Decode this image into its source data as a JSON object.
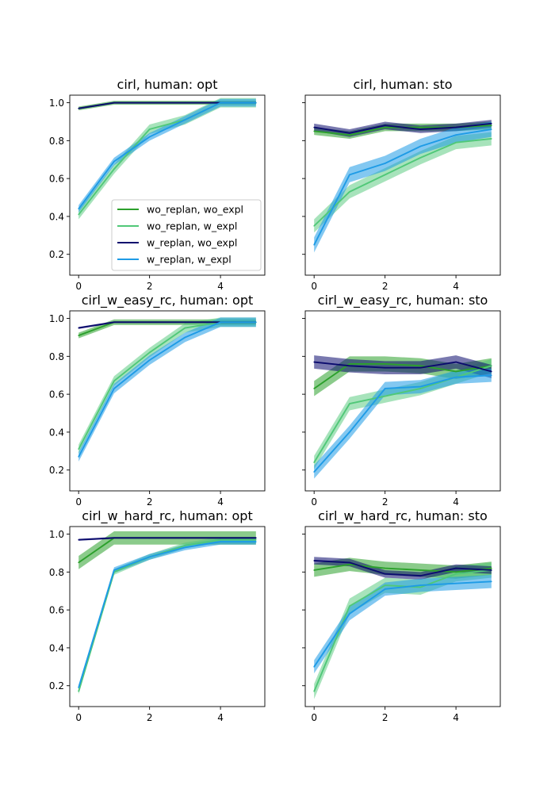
{
  "legend": {
    "entries": [
      {
        "label": "wo_replan, wo_expl",
        "color": "#2ca02c"
      },
      {
        "label": "wo_replan, w_expl",
        "color": "#50c878"
      },
      {
        "label": "w_replan, wo_expl",
        "color": "#0b0b6e"
      },
      {
        "label": "w_replan, w_expl",
        "color": "#1e9be6"
      }
    ]
  },
  "chart_data": [
    {
      "type": "line",
      "title": "cirl, human: opt",
      "x": [
        0,
        1,
        2,
        3,
        4,
        5
      ],
      "xticks": [
        0,
        2,
        4
      ],
      "yticks": [
        "0.2",
        "0.4",
        "0.6",
        "0.8",
        "1.0"
      ],
      "ylim": [
        0.09,
        1.04
      ],
      "xlim": [
        -0.25,
        5.25
      ],
      "legend_location": "lower right",
      "series": [
        {
          "name": "wo_replan, wo_expl",
          "values": [
            0.97,
            1.0,
            1.0,
            1.0,
            1.0,
            1.0
          ],
          "band": 0.01
        },
        {
          "name": "wo_replan, w_expl",
          "values": [
            0.41,
            0.65,
            0.86,
            0.91,
            1.0,
            1.0
          ],
          "band": 0.025
        },
        {
          "name": "w_replan, wo_expl",
          "values": [
            0.97,
            1.0,
            1.0,
            1.0,
            1.0,
            1.0
          ],
          "band": 0.005
        },
        {
          "name": "w_replan, w_expl",
          "values": [
            0.44,
            0.69,
            0.82,
            0.91,
            1.0,
            1.0
          ],
          "band": 0.02
        }
      ]
    },
    {
      "type": "line",
      "title": "cirl, human: sto",
      "x": [
        0,
        1,
        2,
        3,
        4,
        5
      ],
      "xticks": [
        0,
        2,
        4
      ],
      "yticks": [
        "0.2",
        "0.4",
        "0.6",
        "0.8",
        "1.0"
      ],
      "ylim": [
        0.09,
        1.04
      ],
      "xlim": [
        -0.25,
        5.25
      ],
      "series": [
        {
          "name": "wo_replan, wo_expl",
          "values": [
            0.85,
            0.83,
            0.87,
            0.87,
            0.87,
            0.88
          ],
          "band": 0.02
        },
        {
          "name": "wo_replan, w_expl",
          "values": [
            0.35,
            0.53,
            0.62,
            0.71,
            0.79,
            0.81
          ],
          "band": 0.035
        },
        {
          "name": "w_replan, wo_expl",
          "values": [
            0.87,
            0.84,
            0.88,
            0.86,
            0.87,
            0.89
          ],
          "band": 0.02
        },
        {
          "name": "w_replan, w_expl",
          "values": [
            0.25,
            0.62,
            0.68,
            0.77,
            0.83,
            0.86
          ],
          "band": 0.04
        }
      ]
    },
    {
      "type": "line",
      "title": "cirl_w_easy_rc, human: opt",
      "x": [
        0,
        1,
        2,
        3,
        4,
        5
      ],
      "xticks": [
        0,
        2,
        4
      ],
      "yticks": [
        "0.2",
        "0.4",
        "0.6",
        "0.8",
        "1.0"
      ],
      "ylim": [
        0.09,
        1.04
      ],
      "xlim": [
        -0.25,
        5.25
      ],
      "series": [
        {
          "name": "wo_replan, wo_expl",
          "values": [
            0.91,
            0.98,
            0.98,
            0.98,
            0.98,
            0.98
          ],
          "band": 0.015
        },
        {
          "name": "wo_replan, w_expl",
          "values": [
            0.31,
            0.67,
            0.82,
            0.95,
            0.98,
            0.98
          ],
          "band": 0.025
        },
        {
          "name": "w_replan, wo_expl",
          "values": [
            0.95,
            0.98,
            0.98,
            0.98,
            0.98,
            0.98
          ],
          "band": 0.005
        },
        {
          "name": "w_replan, w_expl",
          "values": [
            0.27,
            0.63,
            0.78,
            0.9,
            0.98,
            0.98
          ],
          "band": 0.025
        }
      ]
    },
    {
      "type": "line",
      "title": "cirl_w_easy_rc, human: sto",
      "x": [
        0,
        1,
        2,
        3,
        4,
        5
      ],
      "xticks": [
        0,
        2,
        4
      ],
      "yticks": [
        "0.2",
        "0.4",
        "0.6",
        "0.8",
        "1.0"
      ],
      "ylim": [
        0.09,
        1.04
      ],
      "xlim": [
        -0.25,
        5.25
      ],
      "series": [
        {
          "name": "wo_replan, wo_expl",
          "values": [
            0.63,
            0.76,
            0.76,
            0.75,
            0.72,
            0.75
          ],
          "band": 0.04
        },
        {
          "name": "wo_replan, w_expl",
          "values": [
            0.24,
            0.55,
            0.59,
            0.63,
            0.69,
            0.75
          ],
          "band": 0.035
        },
        {
          "name": "w_replan, wo_expl",
          "values": [
            0.77,
            0.75,
            0.74,
            0.74,
            0.77,
            0.72
          ],
          "band": 0.035
        },
        {
          "name": "w_replan, w_expl",
          "values": [
            0.19,
            0.4,
            0.63,
            0.64,
            0.69,
            0.7
          ],
          "band": 0.035
        }
      ]
    },
    {
      "type": "line",
      "title": "cirl_w_hard_rc, human: opt",
      "x": [
        0,
        1,
        2,
        3,
        4,
        5
      ],
      "xticks": [
        0,
        2,
        4
      ],
      "yticks": [
        "0.2",
        "0.4",
        "0.6",
        "0.8",
        "1.0"
      ],
      "ylim": [
        0.09,
        1.04
      ],
      "xlim": [
        -0.25,
        5.25
      ],
      "series": [
        {
          "name": "wo_replan, wo_expl",
          "values": [
            0.85,
            0.98,
            0.98,
            0.98,
            0.98,
            0.98
          ],
          "band": 0.035
        },
        {
          "name": "wo_replan, w_expl",
          "values": [
            0.17,
            0.8,
            0.88,
            0.94,
            0.97,
            0.97
          ],
          "band": 0.015
        },
        {
          "name": "w_replan, wo_expl",
          "values": [
            0.97,
            0.98,
            0.98,
            0.98,
            0.98,
            0.98
          ],
          "band": 0.005
        },
        {
          "name": "w_replan, w_expl",
          "values": [
            0.19,
            0.81,
            0.88,
            0.93,
            0.96,
            0.96
          ],
          "band": 0.015
        }
      ]
    },
    {
      "type": "line",
      "title": "cirl_w_hard_rc, human: sto",
      "x": [
        0,
        1,
        2,
        3,
        4,
        5
      ],
      "xticks": [
        0,
        2,
        4
      ],
      "yticks": [
        "0.2",
        "0.4",
        "0.6",
        "0.8",
        "1.0"
      ],
      "ylim": [
        0.09,
        1.04
      ],
      "xlim": [
        -0.25,
        5.25
      ],
      "series": [
        {
          "name": "wo_replan, wo_expl",
          "values": [
            0.81,
            0.84,
            0.82,
            0.81,
            0.8,
            0.82
          ],
          "band": 0.035
        },
        {
          "name": "wo_replan, w_expl",
          "values": [
            0.17,
            0.62,
            0.73,
            0.72,
            0.79,
            0.81
          ],
          "band": 0.04
        },
        {
          "name": "w_replan, wo_expl",
          "values": [
            0.86,
            0.85,
            0.79,
            0.78,
            0.82,
            0.81
          ],
          "band": 0.02
        },
        {
          "name": "w_replan, w_expl",
          "values": [
            0.3,
            0.58,
            0.71,
            0.73,
            0.74,
            0.75
          ],
          "band": 0.035
        }
      ]
    }
  ]
}
